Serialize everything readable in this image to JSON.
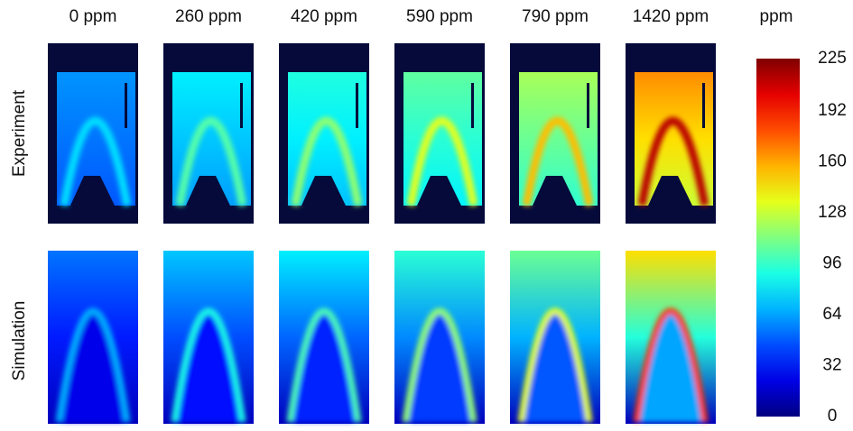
{
  "columns": [
    "0 ppm",
    "260 ppm",
    "420 ppm",
    "590 ppm",
    "790 ppm",
    "1420 ppm"
  ],
  "rows": [
    "Experiment",
    "Simulation"
  ],
  "colorbar": {
    "title": "ppm",
    "lim": [
      0,
      225
    ],
    "ticks": [
      0,
      32,
      64,
      96,
      128,
      160,
      192,
      225
    ]
  }
}
